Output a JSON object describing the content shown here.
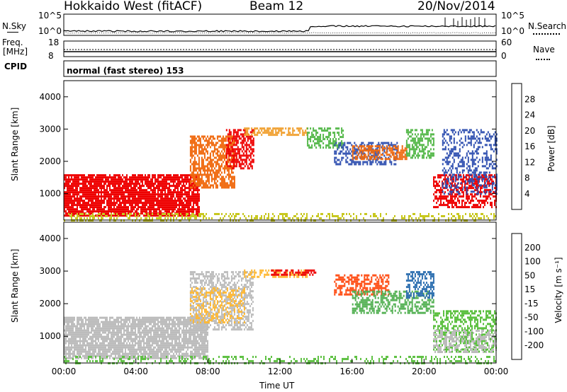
{
  "header": {
    "station": "Hokkaido West (fitACF)",
    "beam": "Beam 12",
    "date": "20/Nov/2014"
  },
  "noise_panel": {
    "left_label": "N.Sky",
    "left_ticks": [
      "10^5",
      "10^0"
    ],
    "right_ticks": [
      "10^5",
      "10^0"
    ],
    "right_label": "N.Search"
  },
  "freq_panel": {
    "left_label_1": "Freq.",
    "left_label_2": "[MHz]",
    "left_ticks": [
      "18",
      "8"
    ],
    "right_ticks": [
      "60",
      "0"
    ],
    "right_label": "Nave"
  },
  "cpid_panel": {
    "label": "CPID",
    "mode_text": "normal (fast stereo) 153"
  },
  "colors": {
    "power_scale": [
      "#0033ff",
      "#2f4fb0",
      "#2e8a52",
      "#55b84a",
      "#c8c820",
      "#f0a030",
      "#f06a10",
      "#e82010",
      "#ee0000"
    ],
    "velocity_scale": [
      "#ee0000",
      "#ff4a10",
      "#ff8c1a",
      "#ffb833",
      "#bcbcbc",
      "#bcbcbc",
      "#5cc040",
      "#52b052",
      "#2d6fb0",
      "#2020c8"
    ]
  },
  "chart_data": [
    {
      "type": "heatmap",
      "name": "power",
      "ylabel": "Slant Range [km]",
      "yticks": [
        "1000",
        "2000",
        "3000",
        "4000"
      ],
      "ylim": [
        180,
        4500
      ],
      "xlim": [
        "00:00",
        "24:00"
      ],
      "colorbar": {
        "label": "Power [dB]",
        "ticks": [
          "4",
          "8",
          "12",
          "16",
          "20",
          "24",
          "28"
        ]
      },
      "regions": [
        {
          "t0": 0.0,
          "t1": 7.5,
          "r0": 300,
          "r1": 1600,
          "color": "#ee0000",
          "density": 0.85
        },
        {
          "t0": 7.0,
          "t1": 9.5,
          "r0": 1200,
          "r1": 2800,
          "color": "#f06a10",
          "density": 0.7
        },
        {
          "t0": 9.0,
          "t1": 10.5,
          "r0": 1800,
          "r1": 3000,
          "color": "#ee0000",
          "density": 0.6
        },
        {
          "t0": 10.0,
          "t1": 13.5,
          "r0": 2800,
          "r1": 3050,
          "color": "#f0a030",
          "density": 0.6
        },
        {
          "t0": 13.5,
          "t1": 15.5,
          "r0": 2400,
          "r1": 3050,
          "color": "#55b84a",
          "density": 0.55
        },
        {
          "t0": 15.0,
          "t1": 18.5,
          "r0": 1900,
          "r1": 2600,
          "color": "#2f4fb0",
          "density": 0.5
        },
        {
          "t0": 16.0,
          "t1": 19.0,
          "r0": 2100,
          "r1": 2500,
          "color": "#f06a10",
          "density": 0.6
        },
        {
          "t0": 19.0,
          "t1": 20.5,
          "r0": 2100,
          "r1": 3000,
          "color": "#55b84a",
          "density": 0.55
        },
        {
          "t0": 20.5,
          "t1": 24.0,
          "r0": 600,
          "r1": 1600,
          "color": "#ee0000",
          "density": 0.6
        },
        {
          "t0": 21.0,
          "t1": 24.0,
          "r0": 1000,
          "r1": 3000,
          "color": "#2f4fb0",
          "density": 0.35
        },
        {
          "t0": 0.0,
          "t1": 24.0,
          "r0": 180,
          "r1": 400,
          "color": "#c8c820",
          "density": 0.35
        }
      ]
    },
    {
      "type": "heatmap",
      "name": "velocity",
      "ylabel": "Slant Range [km]",
      "yticks": [
        "1000",
        "2000",
        "3000",
        "4000"
      ],
      "ylim": [
        180,
        4500
      ],
      "xlabel": "Time UT",
      "xticks": [
        "00:00",
        "04:00",
        "08:00",
        "12:00",
        "16:00",
        "20:00",
        "00:00"
      ],
      "xlim": [
        "00:00",
        "24:00"
      ],
      "colorbar": {
        "label": "Velocity [m s⁻¹]",
        "ticks": [
          "200",
          "100",
          "50",
          "15",
          "-15",
          "-50",
          "-100",
          "-200"
        ]
      },
      "regions": [
        {
          "t0": 0.0,
          "t1": 8.0,
          "r0": 300,
          "r1": 1600,
          "color": "#bcbcbc",
          "density": 0.85
        },
        {
          "t0": 7.0,
          "t1": 10.5,
          "r0": 1200,
          "r1": 3000,
          "color": "#bcbcbc",
          "density": 0.55
        },
        {
          "t0": 7.0,
          "t1": 10.0,
          "r0": 1400,
          "r1": 2500,
          "color": "#ffb833",
          "density": 0.35
        },
        {
          "t0": 10.0,
          "t1": 13.5,
          "r0": 2800,
          "r1": 3050,
          "color": "#ffb833",
          "density": 0.5
        },
        {
          "t0": 11.5,
          "t1": 14.0,
          "r0": 2900,
          "r1": 3050,
          "color": "#ee0000",
          "density": 0.55
        },
        {
          "t0": 15.0,
          "t1": 18.0,
          "r0": 2300,
          "r1": 2900,
          "color": "#ff4a10",
          "density": 0.55
        },
        {
          "t0": 16.0,
          "t1": 20.5,
          "r0": 1700,
          "r1": 2400,
          "color": "#52b052",
          "density": 0.55
        },
        {
          "t0": 19.0,
          "t1": 20.5,
          "r0": 2200,
          "r1": 3000,
          "color": "#2d6fb0",
          "density": 0.5
        },
        {
          "t0": 20.5,
          "t1": 24.0,
          "r0": 500,
          "r1": 1800,
          "color": "#5cc040",
          "density": 0.5
        },
        {
          "t0": 20.5,
          "t1": 24.0,
          "r0": 500,
          "r1": 1200,
          "color": "#bcbcbc",
          "density": 0.45
        },
        {
          "t0": 0.0,
          "t1": 24.0,
          "r0": 180,
          "r1": 400,
          "color": "#5cc040",
          "density": 0.3
        }
      ]
    }
  ]
}
